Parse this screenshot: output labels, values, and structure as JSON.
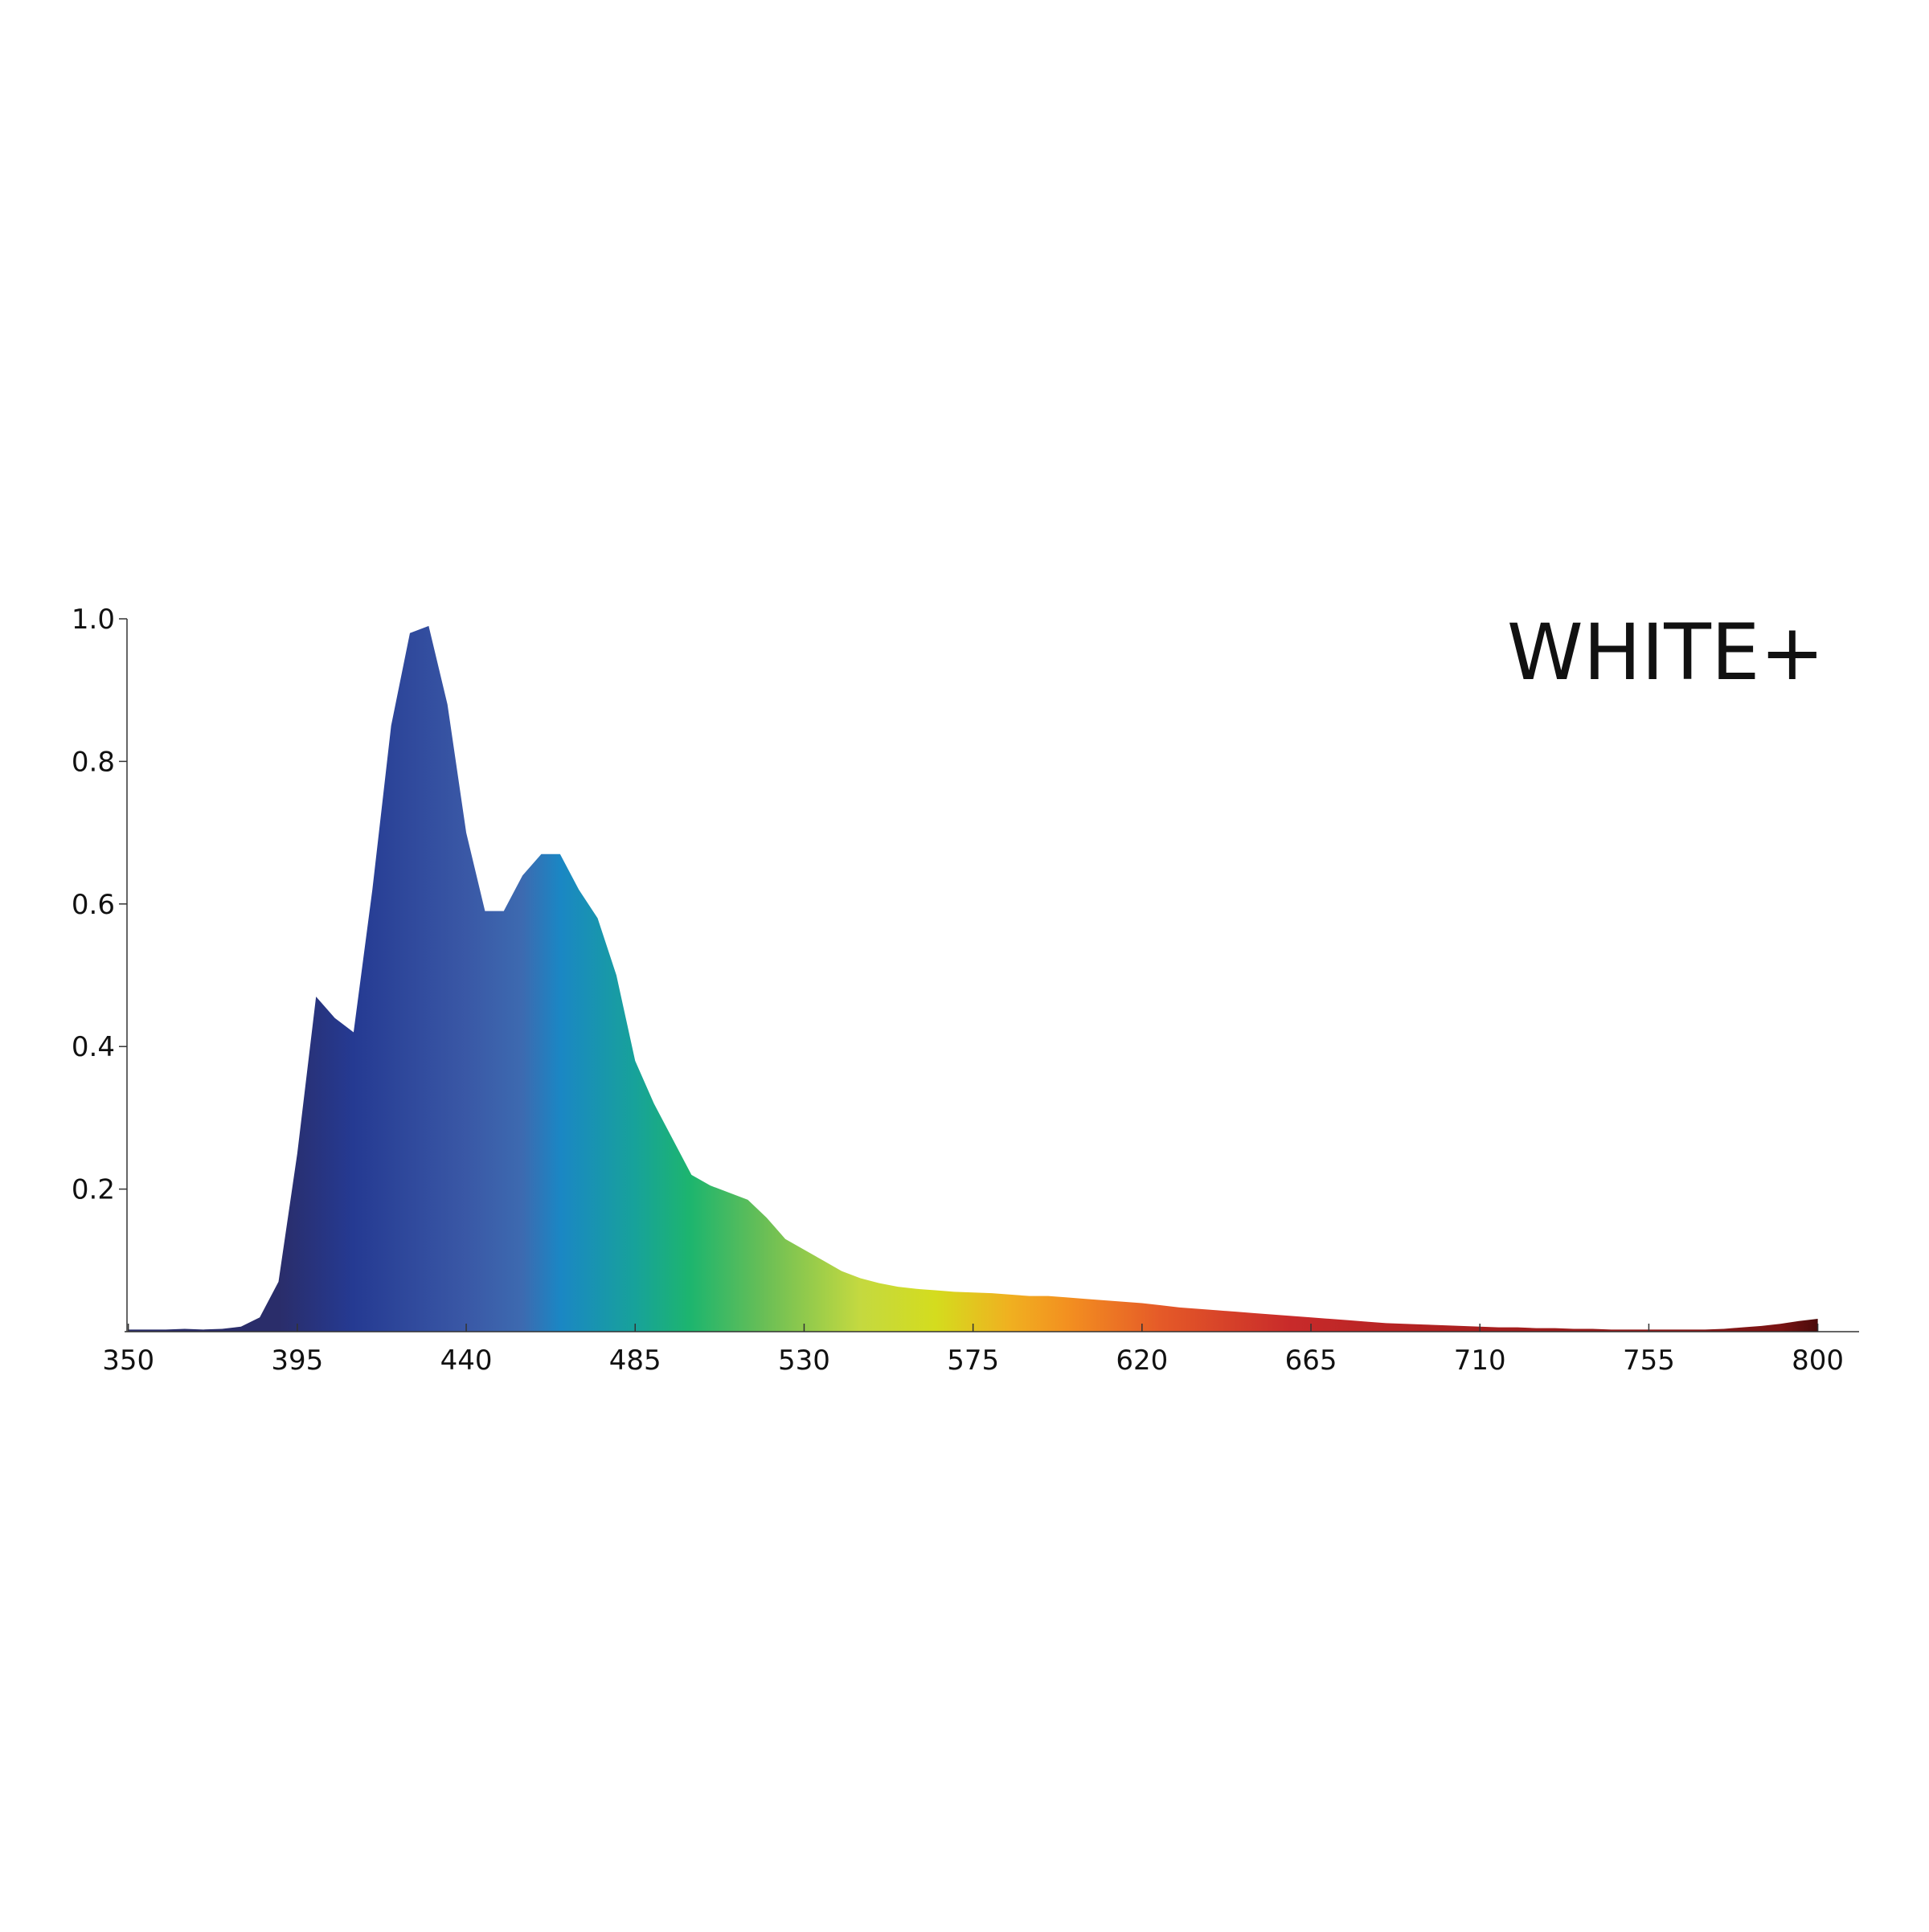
{
  "chart_data": {
    "type": "area",
    "title": "WHITE+",
    "x": [
      350,
      355,
      360,
      365,
      370,
      375,
      380,
      385,
      390,
      395,
      400,
      405,
      410,
      415,
      420,
      425,
      430,
      435,
      440,
      445,
      450,
      455,
      460,
      465,
      470,
      475,
      480,
      485,
      490,
      495,
      500,
      505,
      510,
      515,
      520,
      525,
      530,
      535,
      540,
      545,
      550,
      555,
      560,
      565,
      570,
      575,
      580,
      585,
      590,
      595,
      600,
      605,
      610,
      615,
      620,
      625,
      630,
      635,
      640,
      645,
      650,
      655,
      660,
      665,
      670,
      675,
      680,
      685,
      690,
      695,
      700,
      705,
      710,
      715,
      720,
      725,
      730,
      735,
      740,
      745,
      750,
      755,
      760,
      765,
      770,
      775,
      780,
      785,
      790,
      795,
      800
    ],
    "values": [
      0.003,
      0.003,
      0.003,
      0.004,
      0.003,
      0.004,
      0.007,
      0.02,
      0.07,
      0.25,
      0.47,
      0.44,
      0.42,
      0.62,
      0.85,
      0.98,
      0.99,
      0.88,
      0.7,
      0.59,
      0.59,
      0.64,
      0.67,
      0.67,
      0.62,
      0.58,
      0.5,
      0.38,
      0.32,
      0.27,
      0.22,
      0.205,
      0.195,
      0.185,
      0.16,
      0.13,
      0.115,
      0.1,
      0.085,
      0.075,
      0.068,
      0.063,
      0.06,
      0.058,
      0.056,
      0.055,
      0.054,
      0.052,
      0.05,
      0.05,
      0.048,
      0.046,
      0.044,
      0.042,
      0.04,
      0.037,
      0.034,
      0.032,
      0.03,
      0.028,
      0.026,
      0.024,
      0.022,
      0.02,
      0.018,
      0.016,
      0.014,
      0.012,
      0.011,
      0.01,
      0.009,
      0.008,
      0.007,
      0.006,
      0.006,
      0.005,
      0.005,
      0.004,
      0.004,
      0.003,
      0.003,
      0.003,
      0.003,
      0.003,
      0.003,
      0.004,
      0.006,
      0.008,
      0.011,
      0.015,
      0.018
    ],
    "xlim": [
      349,
      811
    ],
    "xticks": [
      350,
      395,
      440,
      485,
      530,
      575,
      620,
      665,
      710,
      755,
      800
    ],
    "ylim": [
      0,
      1
    ],
    "yticks": [
      0.2,
      0.4,
      0.6,
      0.8,
      {
        "value": 1,
        "label": "1.0"
      }
    ]
  }
}
